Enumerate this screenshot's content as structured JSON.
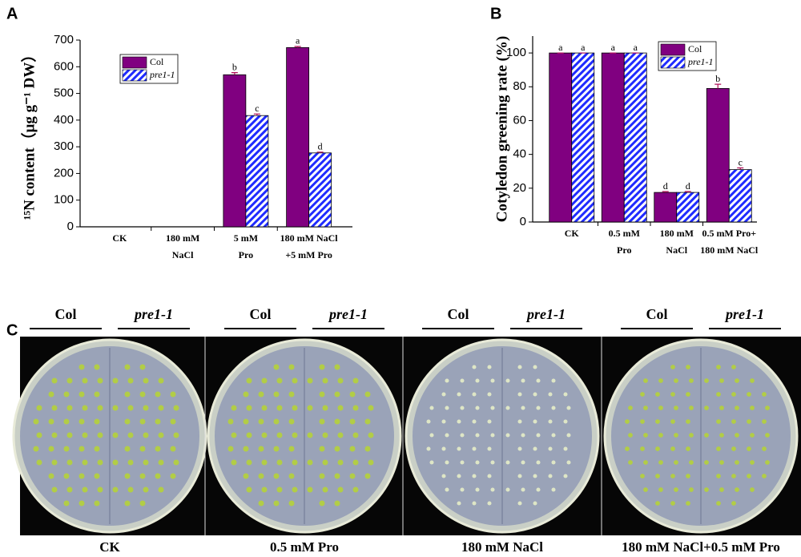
{
  "chart_data": [
    {
      "type": "bar",
      "panel": "A",
      "y_label": "¹⁵N content（μg g⁻¹ DW）",
      "categories": [
        [
          "CK"
        ],
        [
          "180 mM",
          "NaCl"
        ],
        [
          "5 mM",
          "Pro"
        ],
        [
          "180 mM NaCl",
          "+5 mM Pro"
        ]
      ],
      "series": [
        {
          "name": "Col",
          "color": "#800080",
          "values": [
            null,
            null,
            570,
            672
          ],
          "errors": [
            null,
            null,
            8,
            4
          ],
          "letters": [
            null,
            null,
            "b",
            "a"
          ]
        },
        {
          "name": "pre1-1",
          "color": "#1f2bff",
          "pattern": "hatch",
          "values": [
            null,
            null,
            417,
            277
          ],
          "errors": [
            null,
            null,
            6,
            3
          ],
          "letters": [
            null,
            null,
            "c",
            "d"
          ]
        }
      ],
      "ylim": [
        0,
        700
      ],
      "yticks": [
        0,
        100,
        200,
        300,
        400,
        500,
        600,
        700
      ],
      "legend": "upper left"
    },
    {
      "type": "bar",
      "panel": "B",
      "y_label": "Cotyledon greening rate (%)",
      "categories": [
        [
          "CK"
        ],
        [
          "0.5 mM",
          "Pro"
        ],
        [
          "180 mM",
          "NaCl"
        ],
        [
          "0.5 mM Pro+",
          "180 mM NaCl"
        ]
      ],
      "series": [
        {
          "name": "Col",
          "color": "#800080",
          "values": [
            100,
            100,
            17.5,
            79
          ],
          "errors": [
            0,
            0,
            0.5,
            2.5
          ],
          "letters": [
            "a",
            "a",
            "d",
            "b"
          ]
        },
        {
          "name": "pre1-1",
          "color": "#1f2bff",
          "pattern": "hatch",
          "values": [
            100,
            100,
            17.5,
            31
          ],
          "errors": [
            0,
            0,
            0.5,
            1
          ],
          "letters": [
            "a",
            "a",
            "d",
            "c"
          ]
        }
      ],
      "ylim": [
        0,
        110
      ],
      "yticks": [
        0,
        20,
        40,
        60,
        80,
        100
      ],
      "legend": "upper right"
    }
  ],
  "photo_panel": {
    "panel": "C",
    "plates": [
      {
        "label": "CK",
        "groups": [
          "Col",
          "pre1-1"
        ]
      },
      {
        "label": "0.5 mM Pro",
        "groups": [
          "Col",
          "pre1-1"
        ]
      },
      {
        "label": "180 mM NaCl",
        "groups": [
          "Col",
          "pre1-1"
        ]
      },
      {
        "label": "180 mM NaCl+0.5 mM Pro",
        "groups": [
          "Col",
          "pre1-1"
        ]
      }
    ]
  }
}
